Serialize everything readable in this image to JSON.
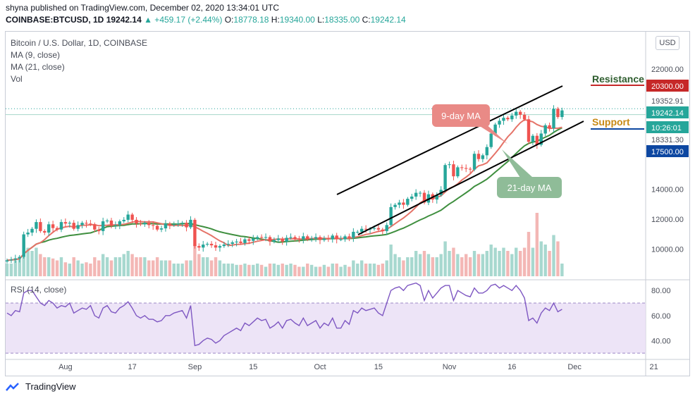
{
  "header": {
    "publisher_line": "shyna published on TradingView.com, December 02, 2020 13:34:01 UTC",
    "symbol": "COINBASE:BTCUSD, 1D",
    "last": "19242.14",
    "change": "▲ +459.17 (+2.44%)",
    "open_label": "O:",
    "open": "18778.18",
    "high_label": "H:",
    "high": "19340.00",
    "low_label": "L:",
    "low": "18335.00",
    "close_label": "C:",
    "close": "19242.14"
  },
  "legend": {
    "title": "Bitcoin / U.S. Dollar, 1D, COINBASE",
    "ma9": "MA (9, close)",
    "ma21": "MA (21, close)",
    "vol": "Vol",
    "rsi": "RSI (14, close)"
  },
  "currency_button": "USD",
  "branding": "TradingView",
  "colors": {
    "up": "#26a69a",
    "down": "#ef5350",
    "ma9": "#e57368",
    "ma21": "#3f8f3f",
    "resistance_bg": "#c62828",
    "support_bg": "#0d47a1",
    "rsi_line": "#7e57c2",
    "rsi_band": "#e9ddf5"
  },
  "chart_data": {
    "type": "candlestick",
    "price_axis": {
      "min": 8000,
      "max": 23500,
      "ticks": [
        "22000.00",
        "14000.00",
        "12000.00",
        "10000.00"
      ],
      "tick_values": [
        22000,
        14000,
        12000,
        10000
      ]
    },
    "price_tags": [
      {
        "label": "20300.00",
        "value": 20300,
        "style": "resistance"
      },
      {
        "label": "19352.91",
        "value": 19352.91,
        "style": "plain"
      },
      {
        "label": "19242.14",
        "value": 19242.14,
        "style": "last"
      },
      {
        "label": "10:26:01",
        "value": 18790,
        "style": "timer"
      },
      {
        "label": "18331.30",
        "value": 18331.3,
        "style": "plain"
      },
      {
        "label": "17500.00",
        "value": 17500,
        "style": "support"
      }
    ],
    "levels": {
      "resistance": {
        "label": "Resistance",
        "value": 20300
      },
      "support": {
        "label": "Support",
        "value": 17500
      }
    },
    "annotations": [
      {
        "label": "9-day MA",
        "kind": "ma9"
      },
      {
        "label": "21-day MA",
        "kind": "ma21"
      }
    ],
    "x_ticks": [
      {
        "label": "Aug",
        "day": 14
      },
      {
        "label": "17",
        "day": 30
      },
      {
        "label": "Sep",
        "day": 45
      },
      {
        "label": "15",
        "day": 59
      },
      {
        "label": "Oct",
        "day": 75
      },
      {
        "label": "15",
        "day": 89
      },
      {
        "label": "Nov",
        "day": 106
      },
      {
        "label": "16",
        "day": 121
      },
      {
        "label": "Dec",
        "day": 136
      },
      {
        "label": "21",
        "day": 155
      }
    ],
    "closes": [
      9250,
      9300,
      9380,
      9480,
      10980,
      11100,
      11350,
      11800,
      11200,
      11100,
      11650,
      11400,
      11300,
      11800,
      11700,
      11750,
      11350,
      11600,
      11750,
      11700,
      11650,
      11300,
      11200,
      11850,
      11900,
      11550,
      11600,
      11850,
      11950,
      12300,
      11950,
      11700,
      11650,
      11750,
      11600,
      11550,
      11300,
      11380,
      11700,
      11600,
      11650,
      11700,
      11750,
      11450,
      11950,
      10200,
      10100,
      10300,
      10350,
      10250,
      10100,
      10200,
      10300,
      10350,
      10450,
      10500,
      10400,
      10650,
      10550,
      10700,
      10800,
      10750,
      10800,
      10500,
      10600,
      10700,
      10500,
      10750,
      10800,
      10700,
      10650,
      10850,
      10650,
      10700,
      10800,
      10600,
      10700,
      10650,
      10900,
      10650,
      10650,
      10850,
      10750,
      11150,
      11150,
      11350,
      11300,
      11350,
      11400,
      11300,
      11200,
      11600,
      12800,
      12950,
      13100,
      12950,
      13350,
      13500,
      13750,
      13750,
      13100,
      13650,
      13300,
      13600,
      13950,
      15600,
      15650,
      14850,
      15450,
      15400,
      15350,
      15300,
      16350,
      16000,
      16250,
      16800,
      17700,
      18300,
      18550,
      18750,
      18650,
      18900,
      19150,
      18950,
      18650,
      17150,
      17550,
      16950,
      17700,
      18250,
      18050,
      19350,
      18800,
      19242
    ],
    "volumes": [
      0.2,
      0.2,
      0.25,
      0.3,
      0.55,
      0.45,
      0.4,
      0.45,
      0.35,
      0.3,
      0.3,
      0.28,
      0.25,
      0.3,
      0.22,
      0.2,
      0.3,
      0.25,
      0.2,
      0.22,
      0.2,
      0.3,
      0.25,
      0.35,
      0.3,
      0.25,
      0.3,
      0.3,
      0.35,
      0.4,
      0.35,
      0.3,
      0.3,
      0.3,
      0.25,
      0.25,
      0.3,
      0.25,
      0.25,
      0.25,
      0.2,
      0.2,
      0.2,
      0.25,
      0.25,
      0.5,
      0.35,
      0.3,
      0.3,
      0.25,
      0.3,
      0.25,
      0.2,
      0.2,
      0.2,
      0.18,
      0.18,
      0.2,
      0.18,
      0.18,
      0.2,
      0.18,
      0.15,
      0.2,
      0.2,
      0.18,
      0.2,
      0.18,
      0.2,
      0.18,
      0.15,
      0.15,
      0.2,
      0.18,
      0.15,
      0.15,
      0.18,
      0.15,
      0.2,
      0.2,
      0.15,
      0.18,
      0.15,
      0.25,
      0.2,
      0.25,
      0.2,
      0.2,
      0.2,
      0.18,
      0.2,
      0.25,
      0.5,
      0.35,
      0.3,
      0.25,
      0.3,
      0.3,
      0.4,
      0.35,
      0.4,
      0.35,
      0.3,
      0.3,
      0.35,
      0.55,
      0.4,
      0.45,
      0.35,
      0.3,
      0.35,
      0.3,
      0.4,
      0.35,
      0.35,
      0.4,
      0.5,
      0.45,
      0.4,
      0.45,
      0.4,
      0.35,
      0.45,
      0.4,
      0.45,
      0.7,
      0.45,
      1.0,
      0.55,
      0.5,
      0.4,
      0.65,
      0.55,
      0.2
    ],
    "rsi": {
      "ticks": [
        "80.00",
        "60.00",
        "40.00"
      ],
      "tick_values": [
        80,
        60,
        40
      ],
      "band": [
        30,
        70
      ],
      "values": [
        62,
        60,
        64,
        63,
        78,
        80,
        80,
        75,
        70,
        68,
        72,
        70,
        66,
        68,
        67,
        70,
        62,
        64,
        66,
        65,
        68,
        60,
        58,
        66,
        68,
        63,
        62,
        66,
        68,
        71,
        66,
        60,
        58,
        60,
        57,
        57,
        55,
        56,
        60,
        60,
        62,
        63,
        64,
        58,
        68,
        36,
        37,
        40,
        42,
        41,
        38,
        40,
        44,
        46,
        48,
        50,
        48,
        54,
        52,
        55,
        58,
        56,
        57,
        50,
        52,
        55,
        50,
        56,
        57,
        54,
        52,
        58,
        52,
        54,
        56,
        50,
        54,
        52,
        58,
        50,
        50,
        56,
        53,
        64,
        62,
        66,
        64,
        65,
        66,
        62,
        60,
        70,
        80,
        82,
        83,
        80,
        84,
        85,
        86,
        84,
        72,
        80,
        74,
        78,
        82,
        84,
        84,
        72,
        80,
        78,
        76,
        75,
        82,
        78,
        78,
        80,
        84,
        85,
        82,
        84,
        82,
        80,
        84,
        80,
        74,
        56,
        58,
        54,
        62,
        66,
        64,
        70,
        63,
        65
      ]
    }
  }
}
